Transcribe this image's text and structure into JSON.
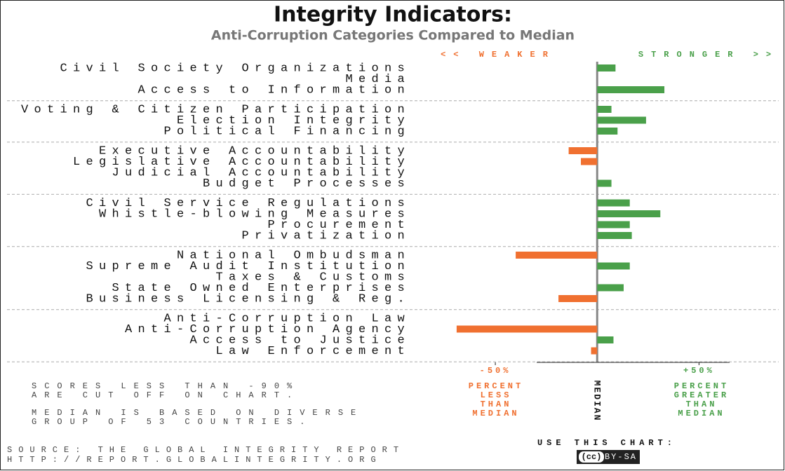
{
  "chart_data": {
    "type": "bar",
    "orientation": "horizontal",
    "title": "Integrity Indicators:",
    "subtitle": "Anti-Corruption Categories Compared to Median",
    "left_label": "<< WEAKER",
    "right_label": "STRONGER >>",
    "negative_color": "#f07030",
    "positive_color": "#4aa04a",
    "groups": [
      {
        "categories": [
          "Civil Society Organizations",
          "Media",
          "Access to Information"
        ],
        "values": [
          9,
          0,
          33
        ]
      },
      {
        "categories": [
          "Voting & Citizen Participation",
          "Election Integrity",
          "Political Financing"
        ],
        "values": [
          7,
          24,
          10
        ]
      },
      {
        "categories": [
          "Executive Accountability",
          "Legislative Accountability",
          "Judicial Accountability",
          "Budget Processes"
        ],
        "values": [
          -14,
          -8,
          0,
          7
        ]
      },
      {
        "categories": [
          "Civil Service Regulations",
          "Whistle-blowing Measures",
          "Procurement",
          "Privatization"
        ],
        "values": [
          16,
          31,
          16,
          17
        ]
      },
      {
        "categories": [
          "National Ombudsman",
          "Supreme Audit Institution",
          "Taxes & Customs",
          "State Owned Enterprises",
          "Business Licensing & Reg."
        ],
        "values": [
          -40,
          16,
          0,
          13,
          -19
        ]
      },
      {
        "categories": [
          "Anti-Corruption Law",
          "Anti-Corruption Agency",
          "Access to Justice",
          "Law Enforcement"
        ],
        "values": [
          0,
          -69,
          8,
          -3
        ]
      }
    ],
    "xlim": [
      -70,
      65
    ],
    "xticks": [
      {
        "value": -50,
        "label": "-50%"
      },
      {
        "value": 50,
        "label": "+50%"
      }
    ],
    "median_label": "MEDIAN",
    "less_label": [
      "PERCENT",
      "LESS",
      "THAN",
      "MEDIAN"
    ],
    "greater_label": [
      "PERCENT",
      "GREATER",
      "THAN",
      "MEDIAN"
    ],
    "notes": [
      [
        "SCORES LESS THAN -90%",
        "ARE CUT OFF ON CHART."
      ],
      [
        "MEDIAN IS BASED ON DIVERSE",
        "GROUP OF 53 COUNTRIES."
      ]
    ],
    "source": [
      "SOURCE: THE GLOBAL INTEGRITY REPORT",
      "HTTP://REPORT.GLOBALINTEGRITY.ORG"
    ],
    "use_chart": "USE THIS CHART:",
    "cc": "(cc)",
    "license": "BY-SA"
  }
}
